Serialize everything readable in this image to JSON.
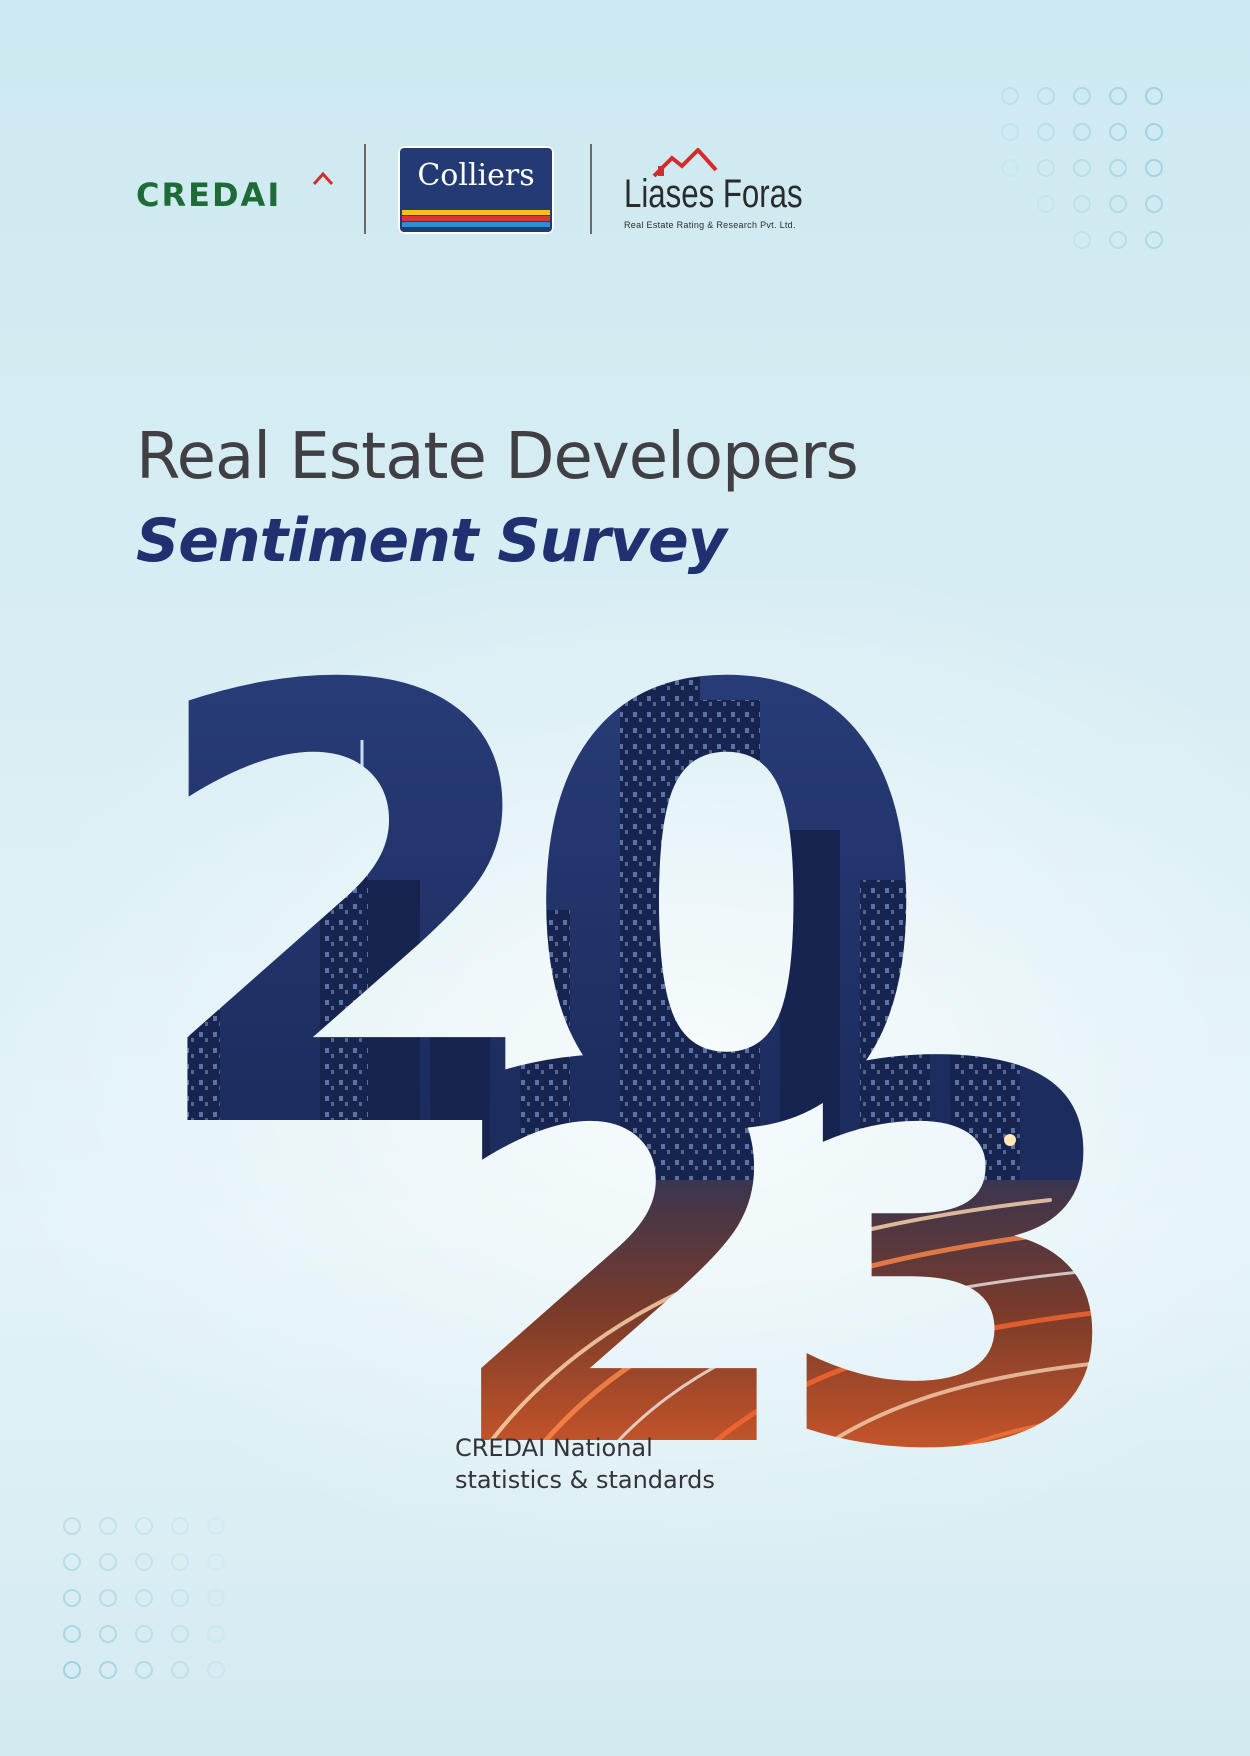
{
  "logos": {
    "credai": "CREDAI",
    "colliers": "Colliers",
    "liases_foras": {
      "name": "Liases Foras",
      "tagline": "Real Estate Rating & Research Pvt. Ltd."
    }
  },
  "title": {
    "line1": "Real Estate Developers",
    "line2": "Sentiment Survey"
  },
  "year": {
    "top": "20",
    "bottom": "23"
  },
  "subtitle": {
    "line1": "CREDAI National",
    "line2": "statistics & standards"
  },
  "colors": {
    "background": "#d6ecf3",
    "title_gray": "#3f3f44",
    "title_navy": "#1f3170",
    "credai_green": "#1e6b38",
    "colliers_navy": "#233a75",
    "liases_red": "#d62b2b",
    "year_night_blue": "#1d3366",
    "year_light_trails": "#c4542a"
  }
}
